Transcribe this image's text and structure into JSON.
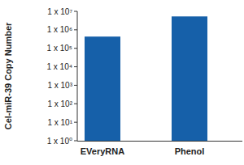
{
  "chart_data": {
    "type": "bar",
    "y_label": "Cel-miR-39 Copy Number",
    "categories": [
      "EVeryRNA",
      "Phenol"
    ],
    "values": [
      430000,
      5300000
    ],
    "color": "#1660a9",
    "log": "y",
    "ylim": [
      1,
      10000000
    ],
    "yticks": [
      {
        "value": 1,
        "label": "1 x 10⁰"
      },
      {
        "value": 10,
        "label": "1 x 10¹"
      },
      {
        "value": 100,
        "label": "1 x 10²"
      },
      {
        "value": 1000,
        "label": "1 x 10³"
      },
      {
        "value": 10000,
        "label": "1 x 10⁴"
      },
      {
        "value": 100000,
        "label": "1 x 10⁵"
      },
      {
        "value": 1000000,
        "label": "1 x 10⁶"
      },
      {
        "value": 10000000,
        "label": "1 x 10⁷"
      }
    ],
    "grid": false
  }
}
